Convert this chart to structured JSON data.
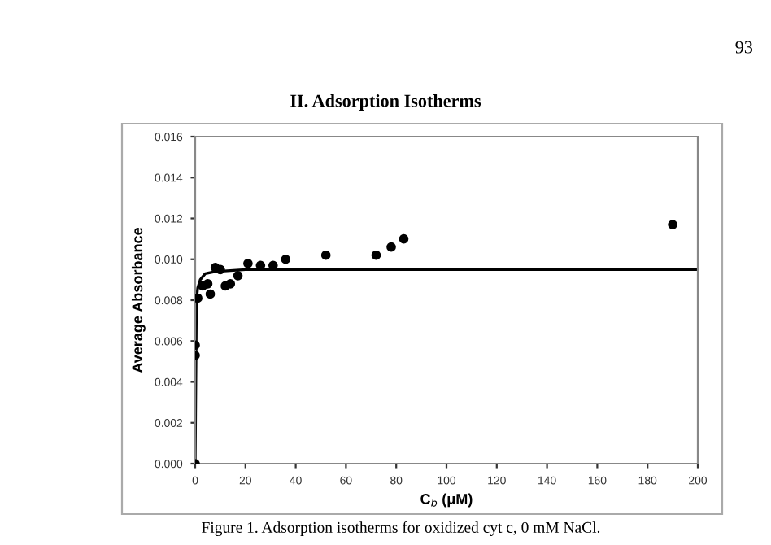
{
  "chart_data": {
    "type": "scatter",
    "title": "II. Adsorption Isotherms",
    "xlabel": "C$_{b}$ (μM)",
    "ylabel": "Average Absorbance",
    "annotations": [
      "93",
      "Figure 1. Adsorption isotherms for oxidized cyt c, 0 mM NaCl."
    ],
    "series": [
      {
        "color": "#000000",
        "marker": "circle",
        "x": [
          0,
          0,
          0,
          1,
          3,
          5,
          6,
          8,
          10,
          12,
          14,
          17,
          21,
          26,
          31,
          36,
          52,
          72,
          78,
          83,
          190
        ],
        "values": [
          0,
          0.0053,
          0.0058,
          0.0081,
          0.0087,
          0.0088,
          0.0083,
          0.0096,
          0.0095,
          0.0087,
          0.0088,
          0.0092,
          0.0098,
          0.0097,
          0.0097,
          0.01,
          0.0102,
          0.0102,
          0.0106,
          0.011,
          0.0117
        ]
      },
      {
        "type": "line",
        "color": "#000000",
        "x": [
          0,
          0.5,
          1,
          2,
          4,
          8,
          20,
          200
        ],
        "values": [
          0,
          0.008,
          0.0086,
          0.009,
          0.0093,
          0.0094,
          0.0095,
          0.0095
        ]
      }
    ],
    "xlim": [
      0,
      200
    ],
    "xticks": [
      0,
      20,
      40,
      60,
      80,
      100,
      120,
      140,
      160,
      180,
      200
    ],
    "ylim": [
      0,
      0.016
    ],
    "yticks": [
      {
        "value": 0,
        "label": "0.000"
      },
      {
        "value": 0.002,
        "label": "0.002"
      },
      {
        "value": 0.004,
        "label": "0.004"
      },
      {
        "value": 0.006,
        "label": "0.006"
      },
      {
        "value": 0.008,
        "label": "0.008"
      },
      {
        "value": 0.01,
        "label": "0.010"
      },
      {
        "value": 0.012,
        "label": "0.012"
      },
      {
        "value": 0.014,
        "label": "0.014"
      },
      {
        "value": 0.016,
        "label": "0.016"
      }
    ]
  }
}
